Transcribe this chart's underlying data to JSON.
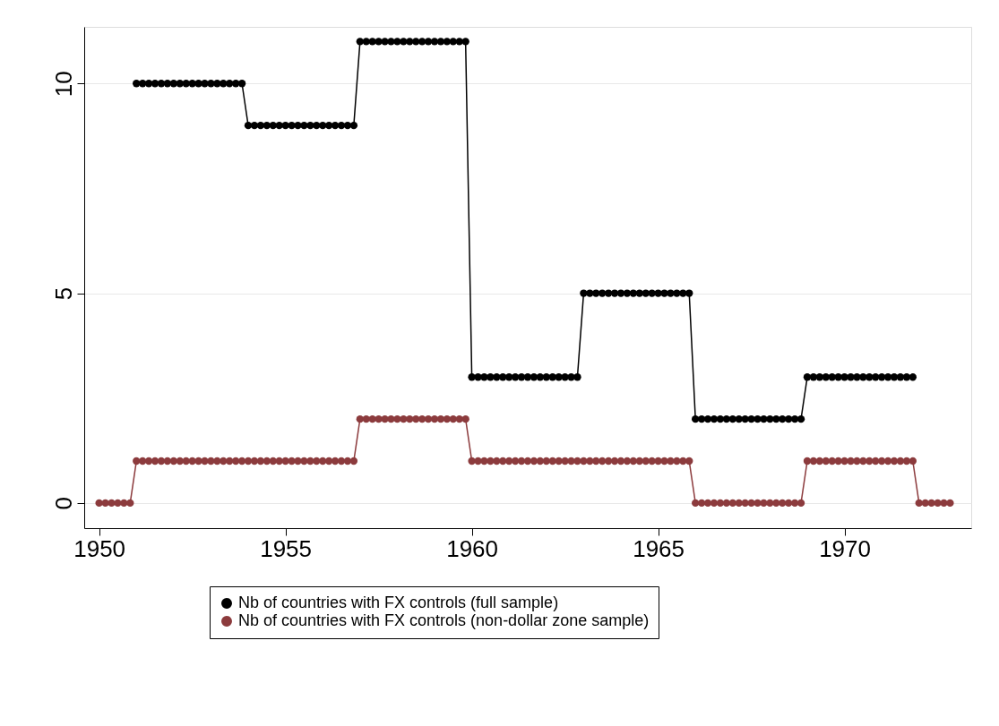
{
  "chart_data": {
    "type": "line",
    "x": [
      1950,
      1950.167,
      1950.333,
      1950.5,
      1950.667,
      1950.833,
      1951,
      1951.167,
      1951.333,
      1951.5,
      1951.667,
      1951.833,
      1952,
      1952.167,
      1952.333,
      1952.5,
      1952.667,
      1952.833,
      1953,
      1953.167,
      1953.333,
      1953.5,
      1953.667,
      1953.833,
      1954,
      1954.167,
      1954.333,
      1954.5,
      1954.667,
      1954.833,
      1955,
      1955.167,
      1955.333,
      1955.5,
      1955.667,
      1955.833,
      1956,
      1956.167,
      1956.333,
      1956.5,
      1956.667,
      1956.833,
      1957,
      1957.167,
      1957.333,
      1957.5,
      1957.667,
      1957.833,
      1958,
      1958.167,
      1958.333,
      1958.5,
      1958.667,
      1958.833,
      1959,
      1959.167,
      1959.333,
      1959.5,
      1959.667,
      1959.833,
      1960,
      1960.167,
      1960.333,
      1960.5,
      1960.667,
      1960.833,
      1961,
      1961.167,
      1961.333,
      1961.5,
      1961.667,
      1961.833,
      1962,
      1962.167,
      1962.333,
      1962.5,
      1962.667,
      1962.833,
      1963,
      1963.167,
      1963.333,
      1963.5,
      1963.667,
      1963.833,
      1964,
      1964.167,
      1964.333,
      1964.5,
      1964.667,
      1964.833,
      1965,
      1965.167,
      1965.333,
      1965.5,
      1965.667,
      1965.833,
      1966,
      1966.167,
      1966.333,
      1966.5,
      1966.667,
      1966.833,
      1967,
      1967.167,
      1967.333,
      1967.5,
      1967.667,
      1967.833,
      1968,
      1968.167,
      1968.333,
      1968.5,
      1968.667,
      1968.833,
      1969,
      1969.167,
      1969.333,
      1969.5,
      1969.667,
      1969.833,
      1970,
      1970.167,
      1970.333,
      1970.5,
      1970.667,
      1970.833,
      1971,
      1971.167,
      1971.333,
      1971.5,
      1971.667,
      1971.833,
      1972,
      1972.167,
      1972.333,
      1972.5,
      1972.667,
      1972.833
    ],
    "series": [
      {
        "name": "Nb of countries with FX controls (full sample)",
        "color": "#000000",
        "values": [
          null,
          null,
          null,
          null,
          null,
          null,
          10,
          10,
          10,
          10,
          10,
          10,
          10,
          10,
          10,
          10,
          10,
          10,
          10,
          10,
          10,
          10,
          10,
          10,
          9,
          9,
          9,
          9,
          9,
          9,
          9,
          9,
          9,
          9,
          9,
          9,
          9,
          9,
          9,
          9,
          9,
          9,
          11,
          11,
          11,
          11,
          11,
          11,
          11,
          11,
          11,
          11,
          11,
          11,
          11,
          11,
          11,
          11,
          11,
          11,
          3,
          3,
          3,
          3,
          3,
          3,
          3,
          3,
          3,
          3,
          3,
          3,
          3,
          3,
          3,
          3,
          3,
          3,
          5,
          5,
          5,
          5,
          5,
          5,
          5,
          5,
          5,
          5,
          5,
          5,
          5,
          5,
          5,
          5,
          5,
          5,
          2,
          2,
          2,
          2,
          2,
          2,
          2,
          2,
          2,
          2,
          2,
          2,
          2,
          2,
          2,
          2,
          2,
          2,
          3,
          3,
          3,
          3,
          3,
          3,
          3,
          3,
          3,
          3,
          3,
          3,
          3,
          3,
          3,
          3,
          3,
          3,
          null,
          null,
          null,
          null,
          null,
          null
        ]
      },
      {
        "name": "Nb of countries with FX controls (non-dollar zone sample)",
        "color": "#8c3b3d",
        "values": [
          0,
          0,
          0,
          0,
          0,
          0,
          1,
          1,
          1,
          1,
          1,
          1,
          1,
          1,
          1,
          1,
          1,
          1,
          1,
          1,
          1,
          1,
          1,
          1,
          1,
          1,
          1,
          1,
          1,
          1,
          1,
          1,
          1,
          1,
          1,
          1,
          1,
          1,
          1,
          1,
          1,
          1,
          2,
          2,
          2,
          2,
          2,
          2,
          2,
          2,
          2,
          2,
          2,
          2,
          2,
          2,
          2,
          2,
          2,
          2,
          1,
          1,
          1,
          1,
          1,
          1,
          1,
          1,
          1,
          1,
          1,
          1,
          1,
          1,
          1,
          1,
          1,
          1,
          1,
          1,
          1,
          1,
          1,
          1,
          1,
          1,
          1,
          1,
          1,
          1,
          1,
          1,
          1,
          1,
          1,
          1,
          0,
          0,
          0,
          0,
          0,
          0,
          0,
          0,
          0,
          0,
          0,
          0,
          0,
          0,
          0,
          0,
          0,
          0,
          1,
          1,
          1,
          1,
          1,
          1,
          1,
          1,
          1,
          1,
          1,
          1,
          1,
          1,
          1,
          1,
          1,
          1,
          0,
          0,
          0,
          0,
          0,
          0
        ]
      }
    ],
    "xlim": [
      1949.6,
      1973.4
    ],
    "ylim": [
      -0.6,
      11.35
    ],
    "xticks": [
      1950,
      1955,
      1960,
      1965,
      1970
    ],
    "yticks": [
      0,
      5,
      10
    ],
    "grid": "y",
    "legend": "bottom",
    "marker": "circle",
    "line_style": "solid"
  }
}
